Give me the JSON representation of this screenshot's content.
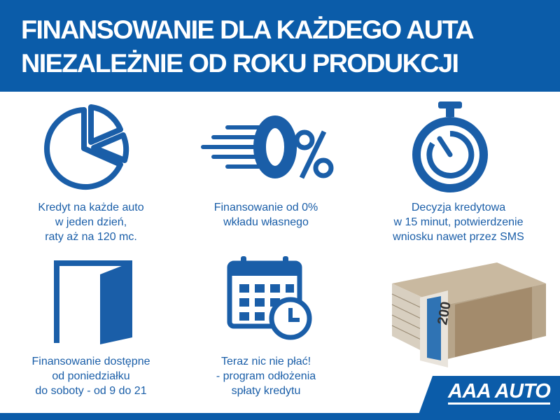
{
  "header": {
    "line1": "FINANSOWANIE DLA KAŻDEGO AUTA",
    "line2": "NIEZALEŻNIE OD ROKU PRODUKCJI"
  },
  "features": [
    {
      "icon": "pie-chart-icon",
      "lines": [
        "Kredyt na każde auto",
        "w jeden dzień,",
        "raty aż na 120 mc."
      ]
    },
    {
      "icon": "zero-percent-icon",
      "lines": [
        "Finansowanie od 0%",
        "wkładu własnego"
      ]
    },
    {
      "icon": "stopwatch-icon",
      "lines": [
        "Decyzja kredytowa",
        "w 15 minut, potwierdzenie",
        "wniosku nawet przez SMS"
      ]
    },
    {
      "icon": "open-door-icon",
      "lines": [
        "Finansowanie dostępne",
        "od poniedziałku",
        "do soboty - od 9 do 21"
      ]
    },
    {
      "icon": "calendar-clock-icon",
      "lines": [
        "Teraz nic nie płać!",
        "- program odłożenia",
        "spłaty kredytu"
      ]
    }
  ],
  "logo": {
    "text": "AAA AUTO"
  },
  "colors": {
    "brand": "#0b5ca9",
    "icon": "#1a5ea8"
  }
}
